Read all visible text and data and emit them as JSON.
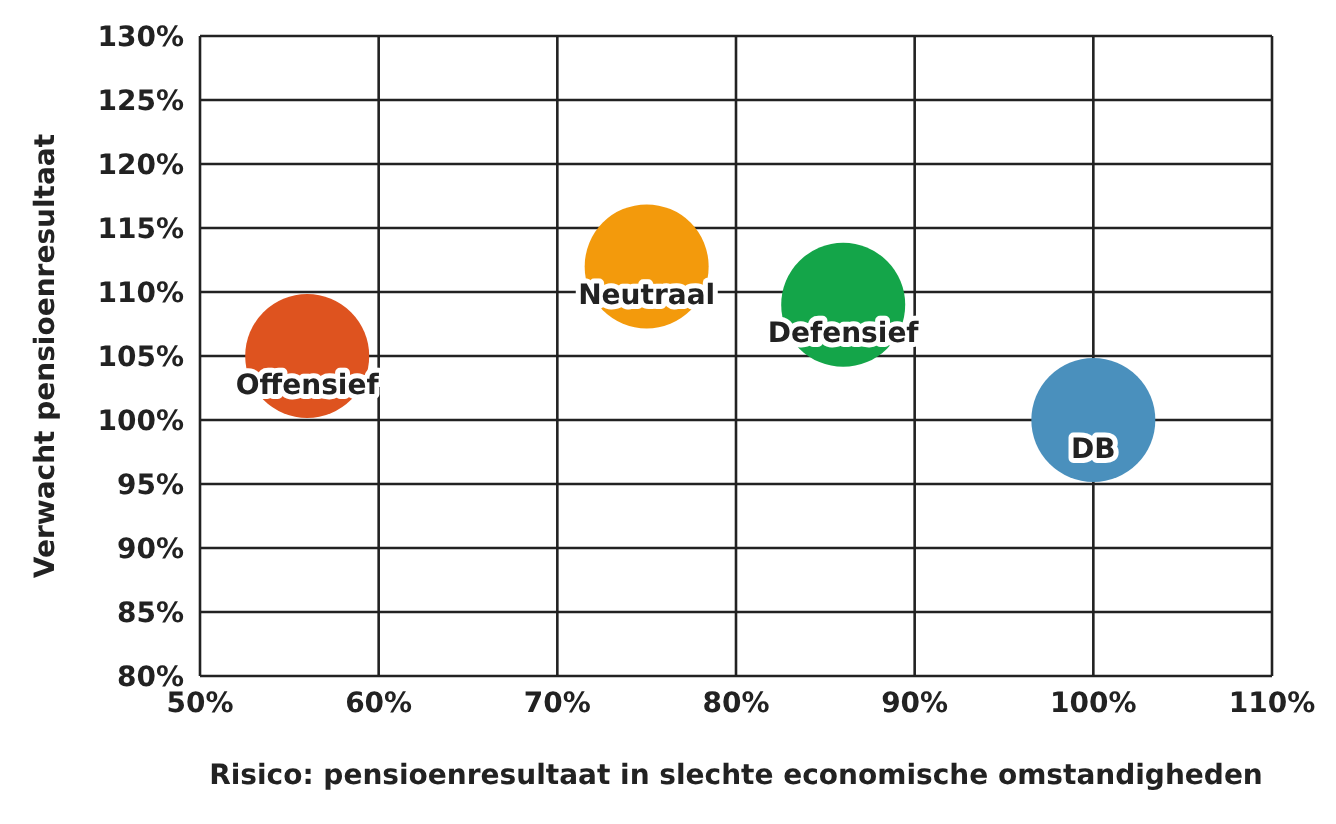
{
  "chart_data": {
    "type": "bubble",
    "xlabel": "Risico: pensioenresultaat in slechte economische omstandigheden",
    "ylabel": "Verwacht pensioenresultaat",
    "xlim": [
      50,
      110
    ],
    "ylim": [
      80,
      130
    ],
    "xticks": [
      {
        "value": 50,
        "label": "50%"
      },
      {
        "value": 60,
        "label": "60%"
      },
      {
        "value": 70,
        "label": "70%"
      },
      {
        "value": 80,
        "label": "80%"
      },
      {
        "value": 90,
        "label": "90%"
      },
      {
        "value": 100,
        "label": "100%"
      },
      {
        "value": 110,
        "label": "110%"
      }
    ],
    "yticks": [
      {
        "value": 80,
        "label": "80%"
      },
      {
        "value": 85,
        "label": "85%"
      },
      {
        "value": 90,
        "label": "90%"
      },
      {
        "value": 95,
        "label": "95%"
      },
      {
        "value": 100,
        "label": "100%"
      },
      {
        "value": 105,
        "label": "105%"
      },
      {
        "value": 110,
        "label": "110%"
      },
      {
        "value": 115,
        "label": "115%"
      },
      {
        "value": 120,
        "label": "120%"
      },
      {
        "value": 125,
        "label": "125%"
      },
      {
        "value": 130,
        "label": "130%"
      }
    ],
    "grid": true,
    "series": [
      {
        "name": "Offensief",
        "color": "#de531f",
        "x": [
          56
        ],
        "values": [
          105
        ],
        "sizes": [
          1
        ]
      },
      {
        "name": "Neutraal",
        "color": "#f39a0c",
        "x": [
          75
        ],
        "values": [
          112
        ],
        "sizes": [
          1
        ]
      },
      {
        "name": "Defensief",
        "color": "#14a549",
        "x": [
          86
        ],
        "values": [
          109
        ],
        "sizes": [
          1
        ]
      },
      {
        "name": "DB",
        "color": "#4a90bd",
        "x": [
          100
        ],
        "values": [
          100
        ],
        "sizes": [
          1
        ]
      }
    ]
  }
}
